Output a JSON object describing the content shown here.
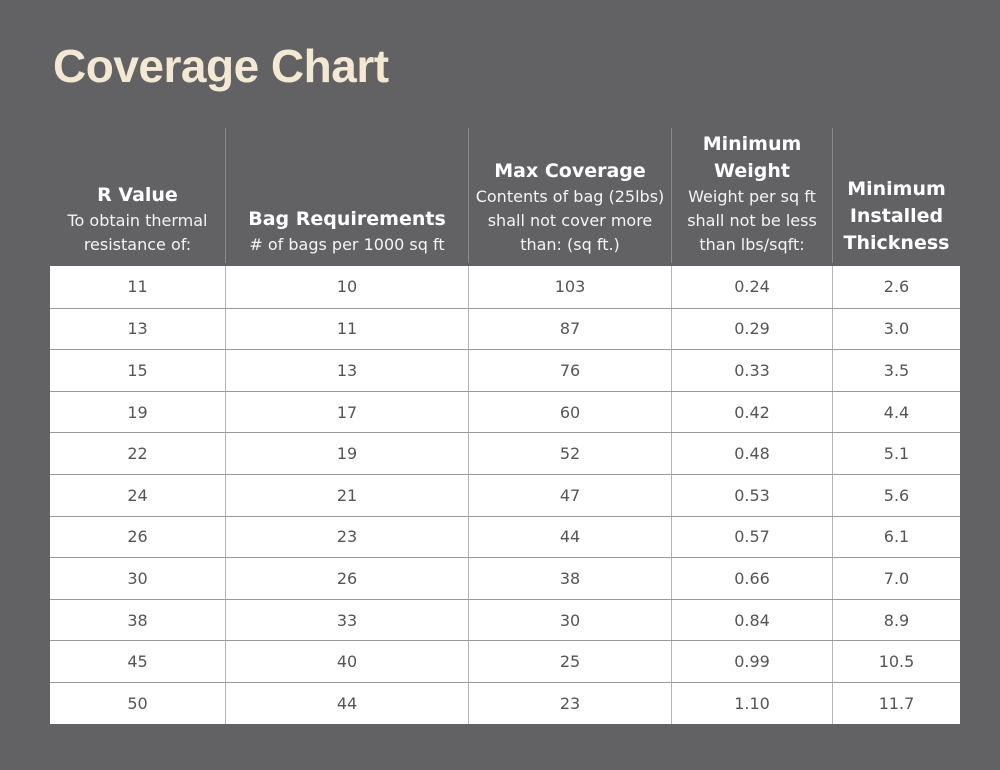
{
  "title": "Coverage Chart",
  "chart_data": {
    "type": "table",
    "title": "Coverage Chart",
    "columns": [
      {
        "title": "R Value",
        "subtitle": "To obtain thermal resistance of:"
      },
      {
        "title": "Bag Requirements",
        "subtitle": "# of bags per 1000 sq ft"
      },
      {
        "title": "Max Coverage",
        "subtitle": "Contents of bag (25lbs) shall not cover more than: (sq ft.)"
      },
      {
        "title": "Minimum Weight",
        "subtitle": "Weight per sq ft shall not be less than lbs/sqft:"
      },
      {
        "title": "Minimum Installed Thickness",
        "subtitle": ""
      }
    ],
    "rows": [
      [
        "11",
        "10",
        "103",
        "0.24",
        "2.6"
      ],
      [
        "13",
        "11",
        "87",
        "0.29",
        "3.0"
      ],
      [
        "15",
        "13",
        "76",
        "0.33",
        "3.5"
      ],
      [
        "19",
        "17",
        "60",
        "0.42",
        "4.4"
      ],
      [
        "22",
        "19",
        "52",
        "0.48",
        "5.1"
      ],
      [
        "24",
        "21",
        "47",
        "0.53",
        "5.6"
      ],
      [
        "26",
        "23",
        "44",
        "0.57",
        "6.1"
      ],
      [
        "30",
        "26",
        "38",
        "0.66",
        "7.0"
      ],
      [
        "38",
        "33",
        "30",
        "0.84",
        "8.9"
      ],
      [
        "45",
        "40",
        "25",
        "0.99",
        "10.5"
      ],
      [
        "50",
        "44",
        "23",
        "1.10",
        "11.7"
      ]
    ]
  }
}
